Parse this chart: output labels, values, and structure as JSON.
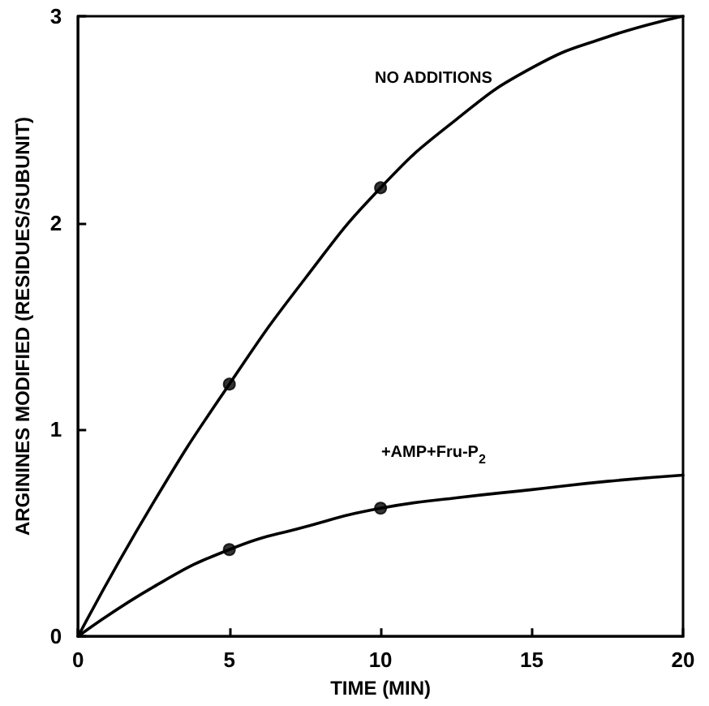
{
  "chart_data": {
    "type": "line",
    "xlabel": "TIME (MIN)",
    "ylabel": "ARGININES MODIFIED (RESIDUES/SUBUNIT)",
    "xlim": [
      0,
      20
    ],
    "xticks": [
      0,
      5,
      10,
      15,
      20
    ],
    "ylim": [
      0,
      3
    ],
    "yticks": [
      0,
      1,
      2,
      3
    ],
    "grid": false,
    "legend": false,
    "marker": "none",
    "line_style": "solid",
    "series": [
      {
        "name": "NO ADDITIONS",
        "color": "#000000",
        "x": [
          0,
          2.5,
          5,
          7.5,
          10,
          12.5,
          15,
          17.5,
          20
        ],
        "values": [
          0,
          0.65,
          1.22,
          1.73,
          2.17,
          2.5,
          2.75,
          2.9,
          3.0
        ]
      },
      {
        "type": "scatter",
        "marker": "circle",
        "color": "#000000",
        "x": [
          5,
          10
        ],
        "values": [
          1.22,
          2.17
        ]
      },
      {
        "name": "+AMP+Fru-P$_{2}$",
        "color": "#000000",
        "x": [
          0,
          2.5,
          5,
          7.5,
          10,
          12.5,
          15,
          17.5,
          20
        ],
        "values": [
          0,
          0.24,
          0.42,
          0.53,
          0.62,
          0.67,
          0.71,
          0.75,
          0.78
        ]
      },
      {
        "type": "scatter",
        "marker": "circle",
        "color": "#000000",
        "x": [
          5,
          10
        ],
        "values": [
          0.42,
          0.62
        ]
      }
    ]
  }
}
